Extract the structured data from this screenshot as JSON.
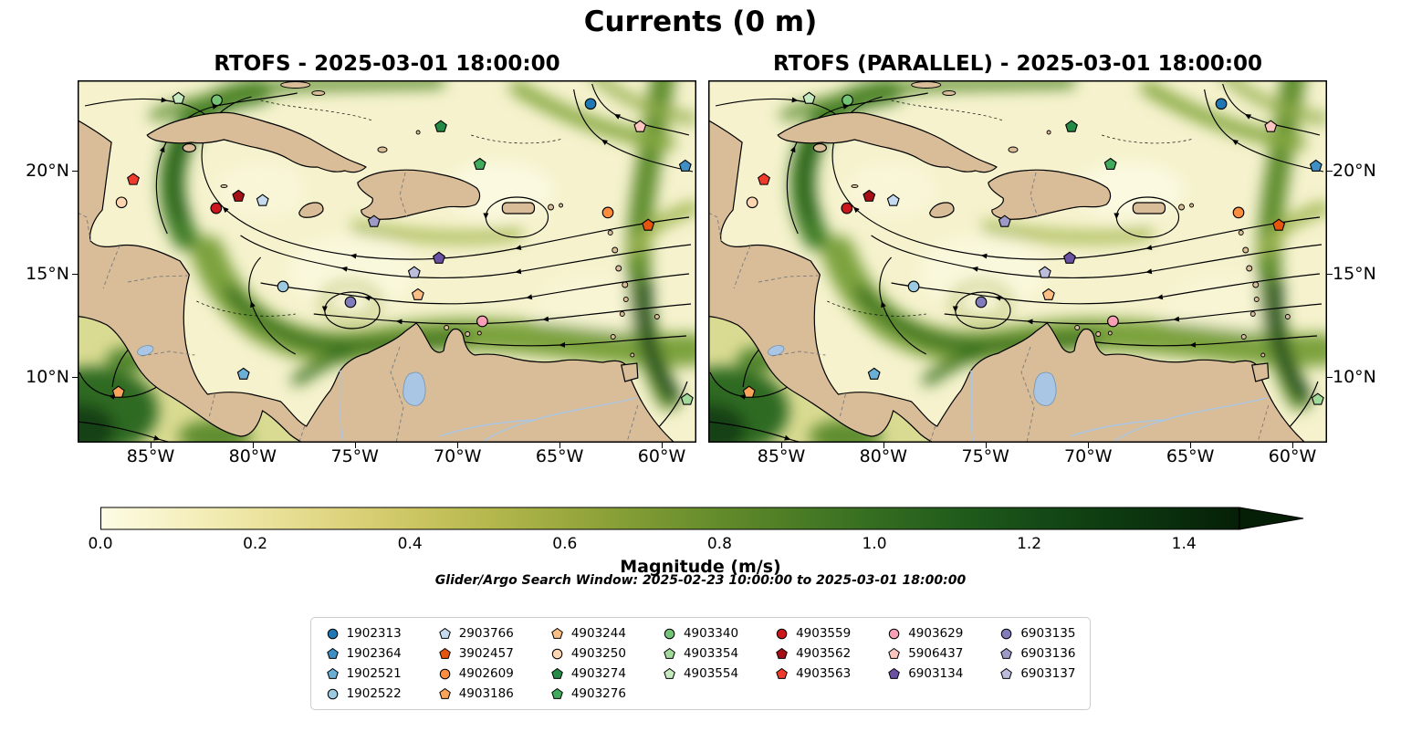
{
  "figure": {
    "title": "Currents (0 m)"
  },
  "palette": {
    "land": "#d8bd98",
    "coastline": "#000000",
    "ocean_low": "#f5f2cd",
    "ocean_high": "#051f07",
    "lake_river": "#a9c6e4",
    "border_dash": "#7a7a7a",
    "legend_edge": "#cccccc"
  },
  "legend": {
    "columns": [
      4,
      4,
      4,
      3,
      3,
      3,
      3
    ]
  },
  "chart_data": {
    "type": "heatmap",
    "title": "Currents (0 m)",
    "subplot_titles": [
      "RTOFS - 2025-03-01 18:00:00",
      "RTOFS (PARALLEL) - 2025-03-01 18:00:00"
    ],
    "x_ticks": [
      "85°W",
      "80°W",
      "75°W",
      "70°W",
      "65°W",
      "60°W"
    ],
    "y_ticks": [
      "20°N",
      "15°N",
      "10°N"
    ],
    "grid": false,
    "legend_position": "bottom-center",
    "search_window": "Glider/Argo Search Window: 2025-02-23 10:00:00 to 2025-03-01 18:00:00",
    "colorbar": {
      "label": "Magnitude (m/s)",
      "ticks": [
        "0.0",
        "0.2",
        "0.4",
        "0.6",
        "0.8",
        "1.0",
        "1.2",
        "1.4"
      ],
      "range": [
        0.0,
        1.5
      ],
      "orientation": "horizontal",
      "extend": "max",
      "gradient": [
        [
          0.0,
          "#fdfce5"
        ],
        [
          0.068,
          "#f6f1c2"
        ],
        [
          0.136,
          "#ece4a0"
        ],
        [
          0.204,
          "#dfd580"
        ],
        [
          0.272,
          "#cdc663"
        ],
        [
          0.34,
          "#b5b84d"
        ],
        [
          0.408,
          "#9aa93e"
        ],
        [
          0.476,
          "#7e9a33"
        ],
        [
          0.544,
          "#638b2b"
        ],
        [
          0.612,
          "#4a7c25"
        ],
        [
          0.68,
          "#346d20"
        ],
        [
          0.748,
          "#225d1c"
        ],
        [
          0.816,
          "#164c17"
        ],
        [
          0.884,
          "#0e3c11"
        ],
        [
          0.952,
          "#082c0b"
        ],
        [
          1.0,
          "#051f07"
        ]
      ]
    },
    "platforms": [
      {
        "id": "1902313",
        "marker": "circle",
        "color": "#1f77b4",
        "x": 0.829,
        "y": 0.065
      },
      {
        "id": "1902364",
        "marker": "pentagon",
        "color": "#3f8fc5",
        "x": 0.982,
        "y": 0.237
      },
      {
        "id": "1902521",
        "marker": "pentagon",
        "color": "#6baed6",
        "x": 0.268,
        "y": 0.811
      },
      {
        "id": "1902522",
        "marker": "circle",
        "color": "#9ecae1",
        "x": 0.332,
        "y": 0.569
      },
      {
        "id": "2903766",
        "marker": "pentagon",
        "color": "#c6dbef",
        "x": 0.299,
        "y": 0.332
      },
      {
        "id": "3902457",
        "marker": "pentagon",
        "color": "#e6550d",
        "x": 0.922,
        "y": 0.4
      },
      {
        "id": "4902609",
        "marker": "circle",
        "color": "#fd8d3c",
        "x": 0.857,
        "y": 0.365
      },
      {
        "id": "4903186",
        "marker": "pentagon",
        "color": "#fda45c",
        "x": 0.066,
        "y": 0.861
      },
      {
        "id": "4903244",
        "marker": "pentagon",
        "color": "#fdbe85",
        "x": 0.55,
        "y": 0.592
      },
      {
        "id": "4903250",
        "marker": "circle",
        "color": "#fdd5b0",
        "x": 0.071,
        "y": 0.337
      },
      {
        "id": "4903274",
        "marker": "pentagon",
        "color": "#238b45",
        "x": 0.587,
        "y": 0.128
      },
      {
        "id": "4903276",
        "marker": "pentagon",
        "color": "#41ab5d",
        "x": 0.65,
        "y": 0.232
      },
      {
        "id": "4903340",
        "marker": "circle",
        "color": "#74c476",
        "x": 0.225,
        "y": 0.055
      },
      {
        "id": "4903354",
        "marker": "pentagon",
        "color": "#a1d99b",
        "x": 0.985,
        "y": 0.881
      },
      {
        "id": "4903554",
        "marker": "pentagon",
        "color": "#c7e9c0",
        "x": 0.163,
        "y": 0.05
      },
      {
        "id": "4903559",
        "marker": "circle",
        "color": "#cb181d",
        "x": 0.224,
        "y": 0.353
      },
      {
        "id": "4903562",
        "marker": "pentagon",
        "color": "#a50f15",
        "x": 0.26,
        "y": 0.32
      },
      {
        "id": "4903563",
        "marker": "pentagon",
        "color": "#ef3b2c",
        "x": 0.09,
        "y": 0.274
      },
      {
        "id": "4903629",
        "marker": "circle",
        "color": "#fa9fb5",
        "x": 0.654,
        "y": 0.665
      },
      {
        "id": "5906437",
        "marker": "pentagon",
        "color": "#fcc5c0",
        "x": 0.909,
        "y": 0.128
      },
      {
        "id": "6903134",
        "marker": "pentagon",
        "color": "#6a51a3",
        "x": 0.584,
        "y": 0.491
      },
      {
        "id": "6903135",
        "marker": "circle",
        "color": "#807dba",
        "x": 0.441,
        "y": 0.612
      },
      {
        "id": "6903136",
        "marker": "pentagon",
        "color": "#9e9ac8",
        "x": 0.479,
        "y": 0.39
      },
      {
        "id": "6903137",
        "marker": "pentagon",
        "color": "#bcbddc",
        "x": 0.544,
        "y": 0.531
      }
    ]
  }
}
